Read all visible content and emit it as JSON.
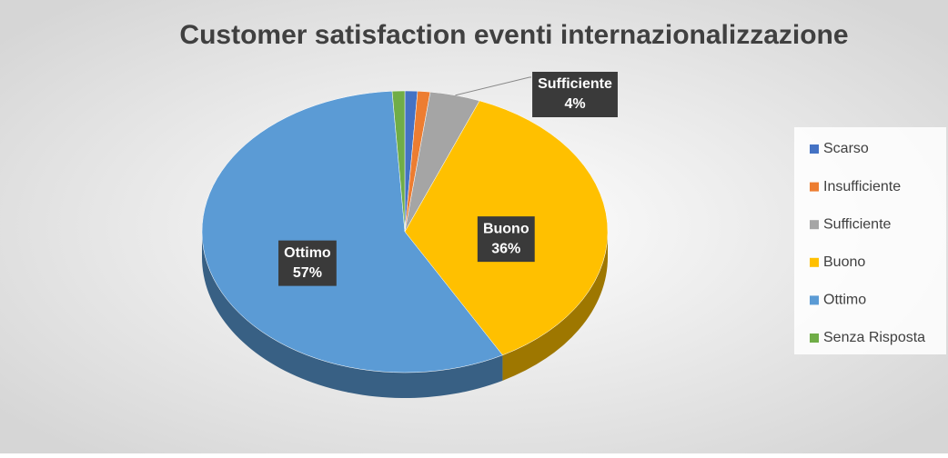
{
  "chart_data": {
    "type": "pie3d",
    "title": "Customer satisfaction eventi internazionalizzazione",
    "categories": [
      "Scarso",
      "Insufficiente",
      "Sufficiente",
      "Buono",
      "Ottimo",
      "Senza Risposta"
    ],
    "values": [
      1,
      1,
      4,
      36,
      57,
      1
    ],
    "value_labels": [
      null,
      null,
      "4%",
      "36%",
      "57%",
      null
    ],
    "colors": [
      "#4472c4",
      "#ed7d31",
      "#a5a5a5",
      "#ffc000",
      "#5b9bd5",
      "#70ad47"
    ],
    "legend": "right"
  }
}
